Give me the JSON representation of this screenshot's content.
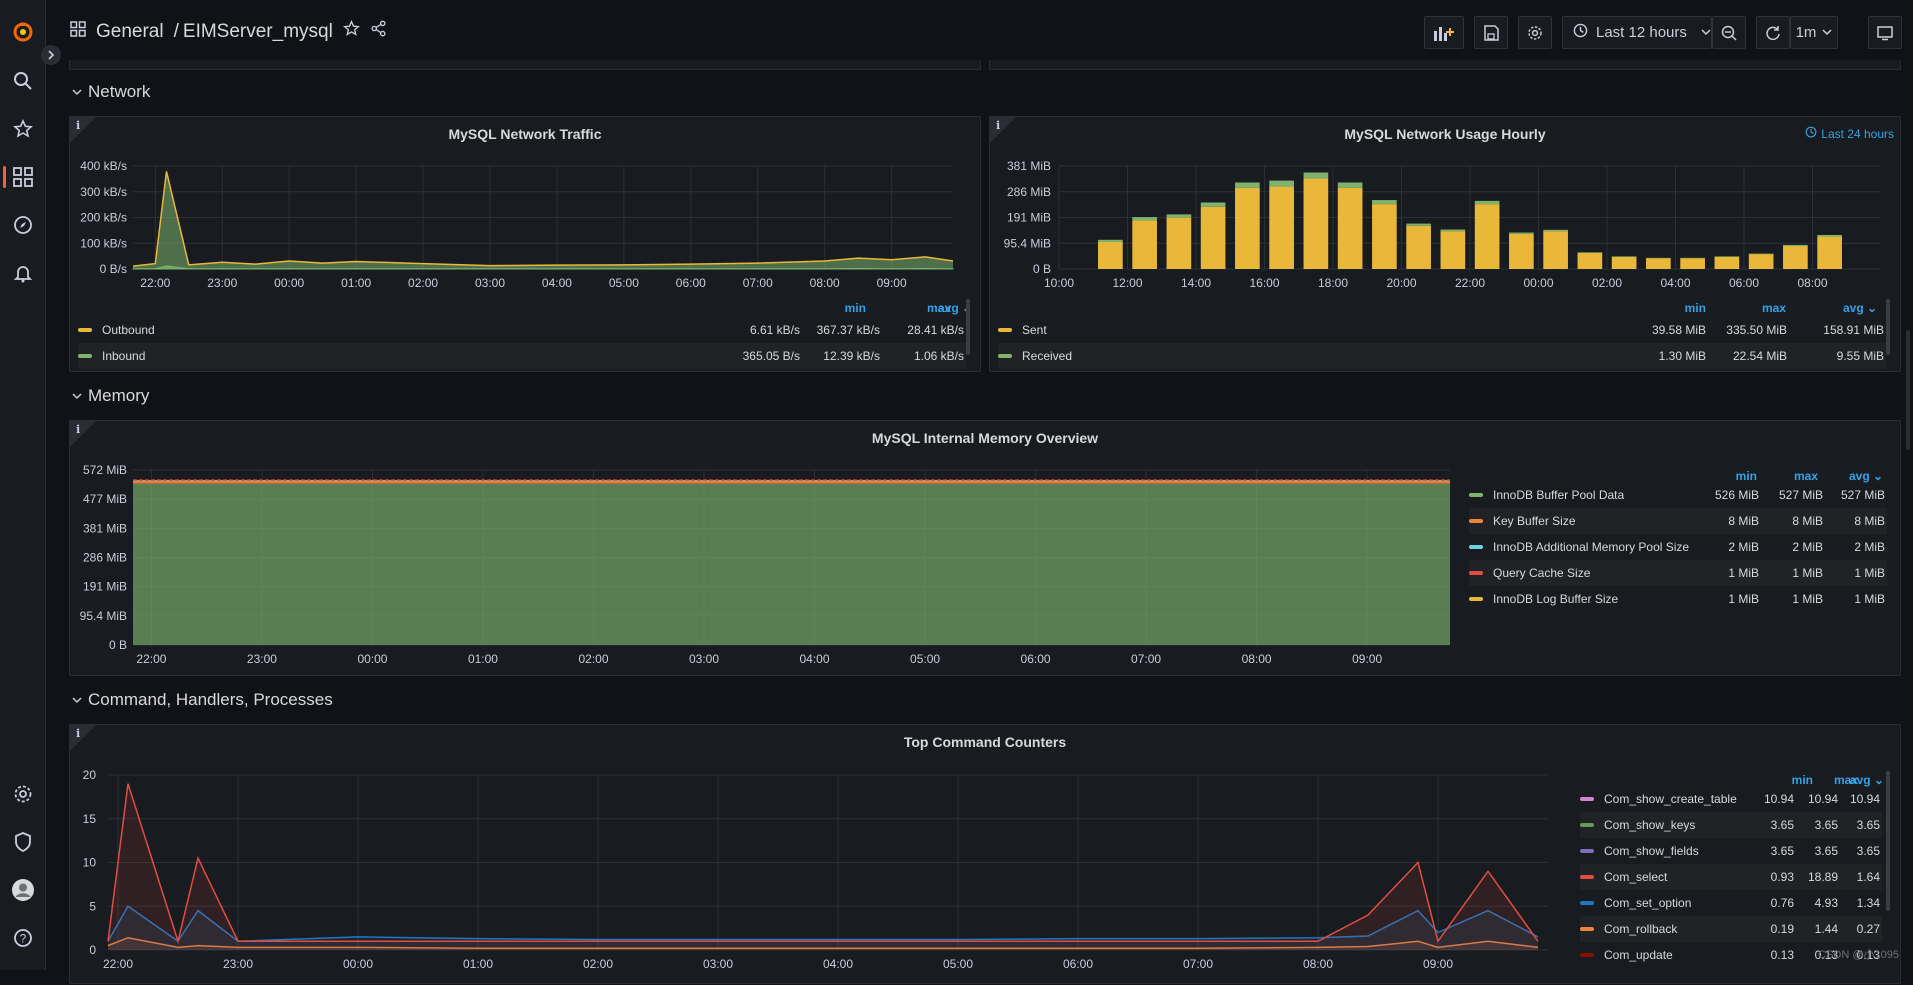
{
  "header": {
    "folder": "General",
    "separator": "/",
    "dashboard": "EIMServer_mysql",
    "time_range": "Last 12 hours",
    "refresh": "1m"
  },
  "rows": {
    "network": "Network",
    "memory": "Memory",
    "commands": "Command, Handlers, Processes"
  },
  "legend_headers": {
    "min": "min",
    "max": "max",
    "avg": "avg"
  },
  "traffic": {
    "title": "MySQL Network Traffic",
    "yticks": [
      "400 kB/s",
      "300 kB/s",
      "200 kB/s",
      "100 kB/s",
      "0 B/s"
    ],
    "xticks": [
      "22:00",
      "23:00",
      "00:00",
      "01:00",
      "02:00",
      "03:00",
      "04:00",
      "05:00",
      "06:00",
      "07:00",
      "08:00",
      "09:00"
    ],
    "legend": [
      {
        "name": "Outbound",
        "min": "6.61 kB/s",
        "max": "367.37 kB/s",
        "avg": "28.41 kB/s",
        "color": "#eab839"
      },
      {
        "name": "Inbound",
        "min": "365.05 B/s",
        "max": "12.39 kB/s",
        "avg": "1.06 kB/s",
        "color": "#7eb26d"
      }
    ]
  },
  "hourly": {
    "title": "MySQL Network Usage Hourly",
    "time_override": "Last 24 hours",
    "yticks": [
      "381 MiB",
      "286 MiB",
      "191 MiB",
      "95.4 MiB",
      "0 B"
    ],
    "xticks": [
      "10:00",
      "12:00",
      "14:00",
      "16:00",
      "18:00",
      "20:00",
      "22:00",
      "00:00",
      "02:00",
      "04:00",
      "06:00",
      "08:00"
    ],
    "legend": [
      {
        "name": "Sent",
        "min": "39.58 MiB",
        "max": "335.50 MiB",
        "avg": "158.91 MiB",
        "color": "#eab839"
      },
      {
        "name": "Received",
        "min": "1.30 MiB",
        "max": "22.54 MiB",
        "avg": "9.55 MiB",
        "color": "#7eb26d"
      }
    ]
  },
  "memory": {
    "title": "MySQL Internal Memory Overview",
    "yticks": [
      "572 MiB",
      "477 MiB",
      "381 MiB",
      "286 MiB",
      "191 MiB",
      "95.4 MiB",
      "0 B"
    ],
    "xticks": [
      "22:00",
      "23:00",
      "00:00",
      "01:00",
      "02:00",
      "03:00",
      "04:00",
      "05:00",
      "06:00",
      "07:00",
      "08:00",
      "09:00"
    ],
    "legend": [
      {
        "name": "InnoDB Buffer Pool Data",
        "min": "526 MiB",
        "max": "527 MiB",
        "avg": "527 MiB",
        "color": "#7eb26d"
      },
      {
        "name": "Key Buffer Size",
        "min": "8 MiB",
        "max": "8 MiB",
        "avg": "8 MiB",
        "color": "#ef843c"
      },
      {
        "name": "InnoDB Additional Memory Pool Size",
        "min": "2 MiB",
        "max": "2 MiB",
        "avg": "2 MiB",
        "color": "#6ed0e0"
      },
      {
        "name": "Query Cache Size",
        "min": "1 MiB",
        "max": "1 MiB",
        "avg": "1 MiB",
        "color": "#e24d42"
      },
      {
        "name": "InnoDB Log Buffer Size",
        "min": "1 MiB",
        "max": "1 MiB",
        "avg": "1 MiB",
        "color": "#eab839"
      }
    ]
  },
  "commands": {
    "title": "Top Command Counters",
    "yticks": [
      "20",
      "15",
      "10",
      "5",
      "0"
    ],
    "xticks": [
      "22:00",
      "23:00",
      "00:00",
      "01:00",
      "02:00",
      "03:00",
      "04:00",
      "05:00",
      "06:00",
      "07:00",
      "08:00",
      "09:00"
    ],
    "legend": [
      {
        "name": "Com_show_create_table",
        "min": "10.94",
        "max": "10.94",
        "avg": "10.94",
        "color": "#d683ce"
      },
      {
        "name": "Com_show_keys",
        "min": "3.65",
        "max": "3.65",
        "avg": "3.65",
        "color": "#629e51"
      },
      {
        "name": "Com_show_fields",
        "min": "3.65",
        "max": "3.65",
        "avg": "3.65",
        "color": "#806eb7"
      },
      {
        "name": "Com_select",
        "min": "0.93",
        "max": "18.89",
        "avg": "1.64",
        "color": "#e24d42"
      },
      {
        "name": "Com_set_option",
        "min": "0.76",
        "max": "4.93",
        "avg": "1.34",
        "color": "#1f78c1"
      },
      {
        "name": "Com_rollback",
        "min": "0.19",
        "max": "1.44",
        "avg": "0.27",
        "color": "#ef843c"
      },
      {
        "name": "Com_update",
        "min": "0.13",
        "max": "0.13",
        "avg": "0.13",
        "color": "#890f02"
      }
    ]
  },
  "chart_data": [
    {
      "type": "area",
      "title": "MySQL Network Traffic",
      "x": [
        "21:40",
        "22:00",
        "22:10",
        "22:30",
        "23:00",
        "23:30",
        "00:00",
        "00:30",
        "01:00",
        "02:00",
        "03:00",
        "04:00",
        "05:00",
        "06:00",
        "07:00",
        "08:00",
        "08:30",
        "09:00",
        "09:30",
        "09:55"
      ],
      "series": [
        {
          "name": "Outbound",
          "values": [
            10,
            20,
            367,
            15,
            25,
            18,
            30,
            22,
            28,
            20,
            12,
            14,
            15,
            18,
            22,
            30,
            40,
            35,
            45,
            30
          ]
        },
        {
          "name": "Inbound",
          "values": [
            1,
            1,
            12,
            1,
            1,
            1,
            1,
            1,
            1,
            1,
            1,
            1,
            1,
            1,
            1,
            1,
            2,
            1,
            2,
            1
          ]
        }
      ],
      "ylim": [
        0,
        400
      ],
      "ylabel_unit": "kB/s"
    },
    {
      "type": "bar",
      "title": "MySQL Network Usage Hourly",
      "categories": [
        "11:00",
        "12:00",
        "13:00",
        "14:00",
        "15:00",
        "16:00",
        "17:00",
        "18:00",
        "19:00",
        "20:00",
        "21:00",
        "22:00",
        "23:00",
        "00:00",
        "01:00",
        "02:00",
        "03:00",
        "04:00",
        "05:00",
        "06:00",
        "07:00",
        "08:00",
        "09:00"
      ],
      "series": [
        {
          "name": "Sent",
          "values": [
            100,
            180,
            190,
            230,
            300,
            305,
            335,
            300,
            240,
            160,
            140,
            240,
            130,
            140,
            60,
            45,
            40,
            40,
            45,
            55,
            85,
            120,
            0
          ]
        },
        {
          "name": "Received",
          "values": [
            8,
            12,
            12,
            16,
            20,
            22,
            22,
            20,
            15,
            8,
            6,
            12,
            5,
            5,
            2,
            2,
            1.3,
            1.3,
            2,
            2,
            4,
            6,
            0
          ]
        }
      ],
      "ylim": [
        0,
        381
      ]
    },
    {
      "type": "area",
      "title": "MySQL Internal Memory Overview",
      "x": [
        "21:50",
        "09:45"
      ],
      "series": [
        {
          "name": "InnoDB Buffer Pool Data",
          "values": [
            527,
            527
          ]
        },
        {
          "name": "Key Buffer Size",
          "values": [
            8,
            8
          ]
        },
        {
          "name": "InnoDB Additional Memory Pool Size",
          "values": [
            2,
            2
          ]
        },
        {
          "name": "Query Cache Size",
          "values": [
            1,
            1
          ]
        },
        {
          "name": "InnoDB Log Buffer Size",
          "values": [
            1,
            1
          ]
        }
      ],
      "ylim": [
        0,
        572
      ]
    },
    {
      "type": "line",
      "title": "Top Command Counters",
      "x": [
        "21:55",
        "22:05",
        "22:30",
        "22:40",
        "23:00",
        "00:00",
        "01:00",
        "02:00",
        "03:00",
        "04:00",
        "05:00",
        "06:00",
        "07:00",
        "08:00",
        "08:25",
        "08:50",
        "09:00",
        "09:25",
        "09:50"
      ],
      "series": [
        {
          "name": "Com_select",
          "values": [
            1,
            19,
            1,
            10.5,
            1,
            1,
            1,
            1,
            1,
            1,
            1,
            1,
            1,
            1,
            4,
            10,
            1,
            9,
            1
          ]
        },
        {
          "name": "Com_set_option",
          "values": [
            1,
            5,
            1,
            4.5,
            1,
            1.5,
            1.3,
            1.2,
            1.2,
            1.2,
            1.2,
            1.3,
            1.3,
            1.4,
            1.6,
            4.5,
            2,
            4.5,
            1.5
          ]
        },
        {
          "name": "Com_rollback",
          "values": [
            0.5,
            1.4,
            0.3,
            0.5,
            0.3,
            0.3,
            0.2,
            0.2,
            0.2,
            0.2,
            0.2,
            0.2,
            0.2,
            0.3,
            0.4,
            1,
            0.3,
            1,
            0.3
          ]
        }
      ],
      "ylim": [
        0,
        20
      ]
    }
  ]
}
